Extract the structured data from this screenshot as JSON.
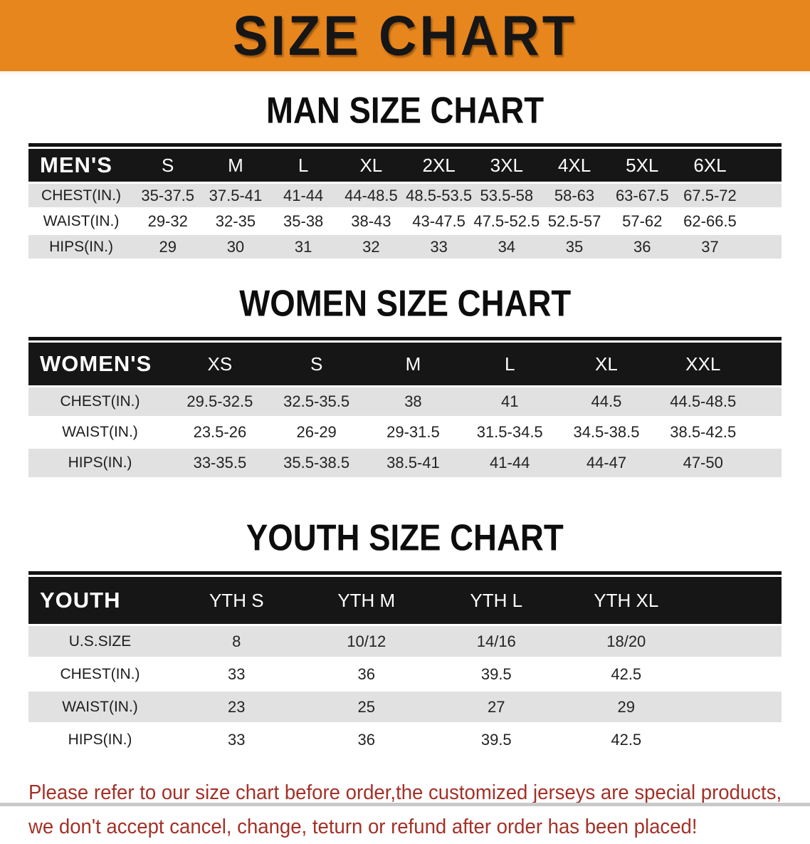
{
  "banner": {
    "title": "SIZE CHART",
    "bg_color": "#E8861E",
    "text_color": "#161616"
  },
  "sections": [
    {
      "title": "MAN SIZE CHART",
      "header_label": "MEN'S",
      "columns": [
        "S",
        "M",
        "L",
        "XL",
        "2XL",
        "3XL",
        "4XL",
        "5XL",
        "6XL"
      ],
      "rows": [
        {
          "label": "CHEST(IN.)",
          "values": [
            "35-37.5",
            "37.5-41",
            "41-44",
            "44-48.5",
            "48.5-53.5",
            "53.5-58",
            "58-63",
            "63-67.5",
            "67.5-72"
          ]
        },
        {
          "label": "WAIST(IN.)",
          "values": [
            "29-32",
            "32-35",
            "35-38",
            "38-43",
            "43-47.5",
            "47.5-52.5",
            "52.5-57",
            "57-62",
            "62-66.5"
          ]
        },
        {
          "label": "HIPS(IN.)",
          "values": [
            "29",
            "30",
            "31",
            "32",
            "33",
            "34",
            "35",
            "36",
            "37"
          ]
        }
      ]
    },
    {
      "title": "WOMEN SIZE CHART",
      "header_label": "WOMEN'S",
      "columns": [
        "XS",
        "S",
        "M",
        "L",
        "XL",
        "XXL"
      ],
      "rows": [
        {
          "label": "CHEST(IN.)",
          "values": [
            "29.5-32.5",
            "32.5-35.5",
            "38",
            "41",
            "44.5",
            "44.5-48.5"
          ]
        },
        {
          "label": "WAIST(IN.)",
          "values": [
            "23.5-26",
            "26-29",
            "29-31.5",
            "31.5-34.5",
            "34.5-38.5",
            "38.5-42.5"
          ]
        },
        {
          "label": "HIPS(IN.)",
          "values": [
            "33-35.5",
            "35.5-38.5",
            "38.5-41",
            "41-44",
            "44-47",
            "47-50"
          ]
        }
      ]
    },
    {
      "title": "YOUTH SIZE CHART",
      "header_label": "YOUTH",
      "columns": [
        "YTH S",
        "YTH M",
        "YTH L",
        "YTH XL"
      ],
      "rows": [
        {
          "label": "U.S.SIZE",
          "values": [
            "8",
            "10/12",
            "14/16",
            "18/20"
          ]
        },
        {
          "label": "CHEST(IN.)",
          "values": [
            "33",
            "36",
            "39.5",
            "42.5"
          ]
        },
        {
          "label": "WAIST(IN.)",
          "values": [
            "23",
            "25",
            "27",
            "29"
          ]
        },
        {
          "label": "HIPS(IN.)",
          "values": [
            "33",
            "36",
            "39.5",
            "42.5"
          ]
        }
      ]
    }
  ],
  "footer": {
    "line1": "Please refer to our size chart before order,the customized jerseys are special products,",
    "line2": "we don't accept cancel, change, teturn or refund after order has been placed!",
    "text_color": "#A33127"
  }
}
